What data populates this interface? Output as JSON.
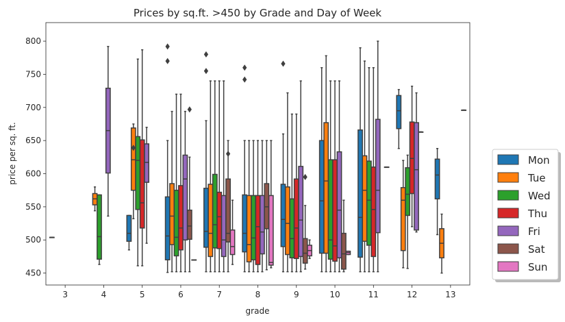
{
  "chart_data": {
    "type": "box",
    "title": "Prices by sq.ft. >450  by Grade and Day of Week",
    "xlabel": "grade",
    "ylabel": "price per sq. ft.",
    "categories": [
      "3",
      "4",
      "5",
      "6",
      "7",
      "8",
      "9",
      "10",
      "11",
      "12",
      "13"
    ],
    "yticks": [
      450,
      500,
      550,
      600,
      650,
      700,
      750,
      800
    ],
    "ylim": [
      432,
      828
    ],
    "legend": {
      "placement": "right, outside plot",
      "entries": [
        "Mon",
        "Tue",
        "Wed",
        "Thu",
        "Fri",
        "Sat",
        "Sun"
      ]
    },
    "colors": {
      "Mon": "#1f77b4",
      "Tue": "#ff7f0e",
      "Wed": "#2ca02c",
      "Thu": "#d62728",
      "Fri": "#9467bd",
      "Sat": "#8c564b",
      "Sun": "#e377c2",
      "line": "#3f3f3f"
    },
    "series": [
      {
        "name": "Mon",
        "boxes": [
          {
            "grade": "3",
            "min": 504,
            "q1": 504,
            "med": 504,
            "q3": 504,
            "max": 504,
            "outliers": []
          },
          {
            "grade": "5",
            "min": 485,
            "q1": 498,
            "med": 510,
            "q3": 537,
            "max": 537,
            "outliers": []
          },
          {
            "grade": "6",
            "min": 451,
            "q1": 470,
            "med": 506,
            "q3": 565,
            "max": 650,
            "outliers": [
              770,
              792
            ]
          },
          {
            "grade": "7",
            "min": 452,
            "q1": 489,
            "med": 513,
            "q3": 578,
            "max": 680,
            "outliers": [
              755,
              780
            ]
          },
          {
            "grade": "8",
            "min": 452,
            "q1": 482,
            "med": 510,
            "q3": 568,
            "max": 650,
            "outliers": [
              742,
              760
            ]
          },
          {
            "grade": "9",
            "min": 452,
            "q1": 490,
            "med": 531,
            "q3": 584,
            "max": 660,
            "outliers": [
              766
            ]
          },
          {
            "grade": "10",
            "min": 452,
            "q1": 480,
            "med": 559,
            "q3": 650,
            "max": 760,
            "outliers": []
          },
          {
            "grade": "11",
            "min": 452,
            "q1": 474,
            "med": 534,
            "q3": 666,
            "max": 790,
            "outliers": []
          },
          {
            "grade": "12",
            "min": 638,
            "q1": 668,
            "med": 695,
            "q3": 718,
            "max": 727,
            "outliers": []
          },
          {
            "grade": "13",
            "min": 508,
            "q1": 562,
            "med": 598,
            "q3": 622,
            "max": 638,
            "outliers": []
          }
        ]
      },
      {
        "name": "Tue",
        "boxes": [
          {
            "grade": "4",
            "min": 544,
            "q1": 553,
            "med": 562,
            "q3": 570,
            "max": 580,
            "outliers": []
          },
          {
            "grade": "5",
            "min": 532,
            "q1": 575,
            "med": 621,
            "q3": 669,
            "max": 675,
            "outliers": [
              639
            ]
          },
          {
            "grade": "6",
            "min": 452,
            "q1": 493,
            "med": 536,
            "q3": 585,
            "max": 694,
            "outliers": []
          },
          {
            "grade": "7",
            "min": 452,
            "q1": 475,
            "med": 510,
            "q3": 584,
            "max": 740,
            "outliers": []
          },
          {
            "grade": "8",
            "min": 452,
            "q1": 467,
            "med": 493,
            "q3": 567,
            "max": 650,
            "outliers": []
          },
          {
            "grade": "9",
            "min": 452,
            "q1": 478,
            "med": 525,
            "q3": 580,
            "max": 722,
            "outliers": []
          },
          {
            "grade": "10",
            "min": 452,
            "q1": 480,
            "med": 589,
            "q3": 677,
            "max": 778,
            "outliers": []
          },
          {
            "grade": "11",
            "min": 452,
            "q1": 498,
            "med": 575,
            "q3": 627,
            "max": 770,
            "outliers": []
          },
          {
            "grade": "12",
            "min": 458,
            "q1": 484,
            "med": 560,
            "q3": 579,
            "max": 620,
            "outliers": []
          },
          {
            "grade": "13",
            "min": 450,
            "q1": 473,
            "med": 495,
            "q3": 517,
            "max": 539,
            "outliers": []
          }
        ]
      },
      {
        "name": "Wed",
        "boxes": [
          {
            "grade": "4",
            "min": 463,
            "q1": 471,
            "med": 505,
            "q3": 568,
            "max": 568,
            "outliers": []
          },
          {
            "grade": "5",
            "min": 461,
            "q1": 546,
            "med": 620,
            "q3": 656,
            "max": 773,
            "outliers": []
          },
          {
            "grade": "6",
            "min": 452,
            "q1": 476,
            "med": 504,
            "q3": 575,
            "max": 720,
            "outliers": []
          },
          {
            "grade": "7",
            "min": 452,
            "q1": 488,
            "med": 523,
            "q3": 599,
            "max": 740,
            "outliers": []
          },
          {
            "grade": "8",
            "min": 452,
            "q1": 470,
            "med": 503,
            "q3": 567,
            "max": 650,
            "outliers": []
          },
          {
            "grade": "9",
            "min": 452,
            "q1": 473,
            "med": 502,
            "q3": 562,
            "max": 690,
            "outliers": []
          },
          {
            "grade": "10",
            "min": 452,
            "q1": 471,
            "med": 500,
            "q3": 621,
            "max": 740,
            "outliers": []
          },
          {
            "grade": "11",
            "min": 452,
            "q1": 492,
            "med": 560,
            "q3": 619,
            "max": 760,
            "outliers": []
          },
          {
            "grade": "12",
            "min": 457,
            "q1": 537,
            "med": 569,
            "q3": 609,
            "max": 628,
            "outliers": []
          }
        ]
      },
      {
        "name": "Thu",
        "boxes": [
          {
            "grade": "5",
            "min": 461,
            "q1": 518,
            "med": 556,
            "q3": 651,
            "max": 787,
            "outliers": []
          },
          {
            "grade": "6",
            "min": 452,
            "q1": 485,
            "med": 518,
            "q3": 582,
            "max": 720,
            "outliers": []
          },
          {
            "grade": "7",
            "min": 452,
            "q1": 487,
            "med": 535,
            "q3": 572,
            "max": 740,
            "outliers": []
          },
          {
            "grade": "8",
            "min": 452,
            "q1": 463,
            "med": 520,
            "q3": 567,
            "max": 650,
            "outliers": []
          },
          {
            "grade": "9",
            "min": 452,
            "q1": 472,
            "med": 518,
            "q3": 592,
            "max": 690,
            "outliers": []
          },
          {
            "grade": "10",
            "min": 452,
            "q1": 468,
            "med": 491,
            "q3": 621,
            "max": 740,
            "outliers": []
          },
          {
            "grade": "11",
            "min": 452,
            "q1": 475,
            "med": 546,
            "q3": 610,
            "max": 760,
            "outliers": []
          },
          {
            "grade": "12",
            "min": 520,
            "q1": 570,
            "med": 623,
            "q3": 678,
            "max": 732,
            "outliers": []
          }
        ]
      },
      {
        "name": "Fri",
        "boxes": [
          {
            "grade": "4",
            "min": 536,
            "q1": 601,
            "med": 665,
            "q3": 729,
            "max": 792,
            "outliers": []
          },
          {
            "grade": "5",
            "min": 495,
            "q1": 587,
            "med": 617,
            "q3": 645,
            "max": 670,
            "outliers": []
          },
          {
            "grade": "6",
            "min": 452,
            "q1": 500,
            "med": 592,
            "q3": 628,
            "max": 694,
            "outliers": []
          },
          {
            "grade": "7",
            "min": 452,
            "q1": 475,
            "med": 500,
            "q3": 567,
            "max": 740,
            "outliers": []
          },
          {
            "grade": "8",
            "min": 452,
            "q1": 479,
            "med": 512,
            "q3": 567,
            "max": 650,
            "outliers": []
          },
          {
            "grade": "9",
            "min": 452,
            "q1": 475,
            "med": 530,
            "q3": 611,
            "max": 740,
            "outliers": []
          },
          {
            "grade": "10",
            "min": 452,
            "q1": 473,
            "med": 545,
            "q3": 633,
            "max": 740,
            "outliers": []
          },
          {
            "grade": "11",
            "min": 452,
            "q1": 511,
            "med": 575,
            "q3": 682,
            "max": 800,
            "outliers": []
          },
          {
            "grade": "12",
            "min": 512,
            "q1": 515,
            "med": 606,
            "q3": 677,
            "max": 722,
            "outliers": []
          }
        ]
      },
      {
        "name": "Sat",
        "boxes": [
          {
            "grade": "6",
            "min": 452,
            "q1": 501,
            "med": 521,
            "q3": 545,
            "max": 625,
            "outliers": [
              697
            ]
          },
          {
            "grade": "7",
            "min": 452,
            "q1": 497,
            "med": 510,
            "q3": 592,
            "max": 650,
            "outliers": [
              630
            ]
          },
          {
            "grade": "8",
            "min": 455,
            "q1": 517,
            "med": 550,
            "q3": 585,
            "max": 650,
            "outliers": []
          },
          {
            "grade": "9",
            "min": 456,
            "q1": 465,
            "med": 480,
            "q3": 502,
            "max": 552,
            "outliers": [
              595
            ]
          },
          {
            "grade": "10",
            "min": 452,
            "q1": 456,
            "med": 479,
            "q3": 510,
            "max": 560,
            "outliers": []
          },
          {
            "grade": "12",
            "min": 663,
            "q1": 663,
            "med": 663,
            "q3": 663,
            "max": 663,
            "outliers": []
          }
        ]
      },
      {
        "name": "Sun",
        "boxes": [
          {
            "grade": "6",
            "min": 470,
            "q1": 470,
            "med": 470,
            "q3": 470,
            "max": 470,
            "outliers": []
          },
          {
            "grade": "7",
            "min": 463,
            "q1": 478,
            "med": 490,
            "q3": 515,
            "max": 560,
            "outliers": []
          },
          {
            "grade": "8",
            "min": 458,
            "q1": 462,
            "med": 466,
            "q3": 567,
            "max": 650,
            "outliers": []
          },
          {
            "grade": "9",
            "min": 472,
            "q1": 476,
            "med": 484,
            "q3": 492,
            "max": 500,
            "outliers": []
          },
          {
            "grade": "10",
            "min": 478,
            "q1": 478,
            "med": 481,
            "q3": 483,
            "max": 483,
            "outliers": []
          },
          {
            "grade": "11",
            "min": 610,
            "q1": 610,
            "med": 610,
            "q3": 610,
            "max": 610,
            "outliers": []
          },
          {
            "grade": "13",
            "min": 696,
            "q1": 696,
            "med": 696,
            "q3": 696,
            "max": 696,
            "outliers": []
          }
        ]
      }
    ]
  }
}
